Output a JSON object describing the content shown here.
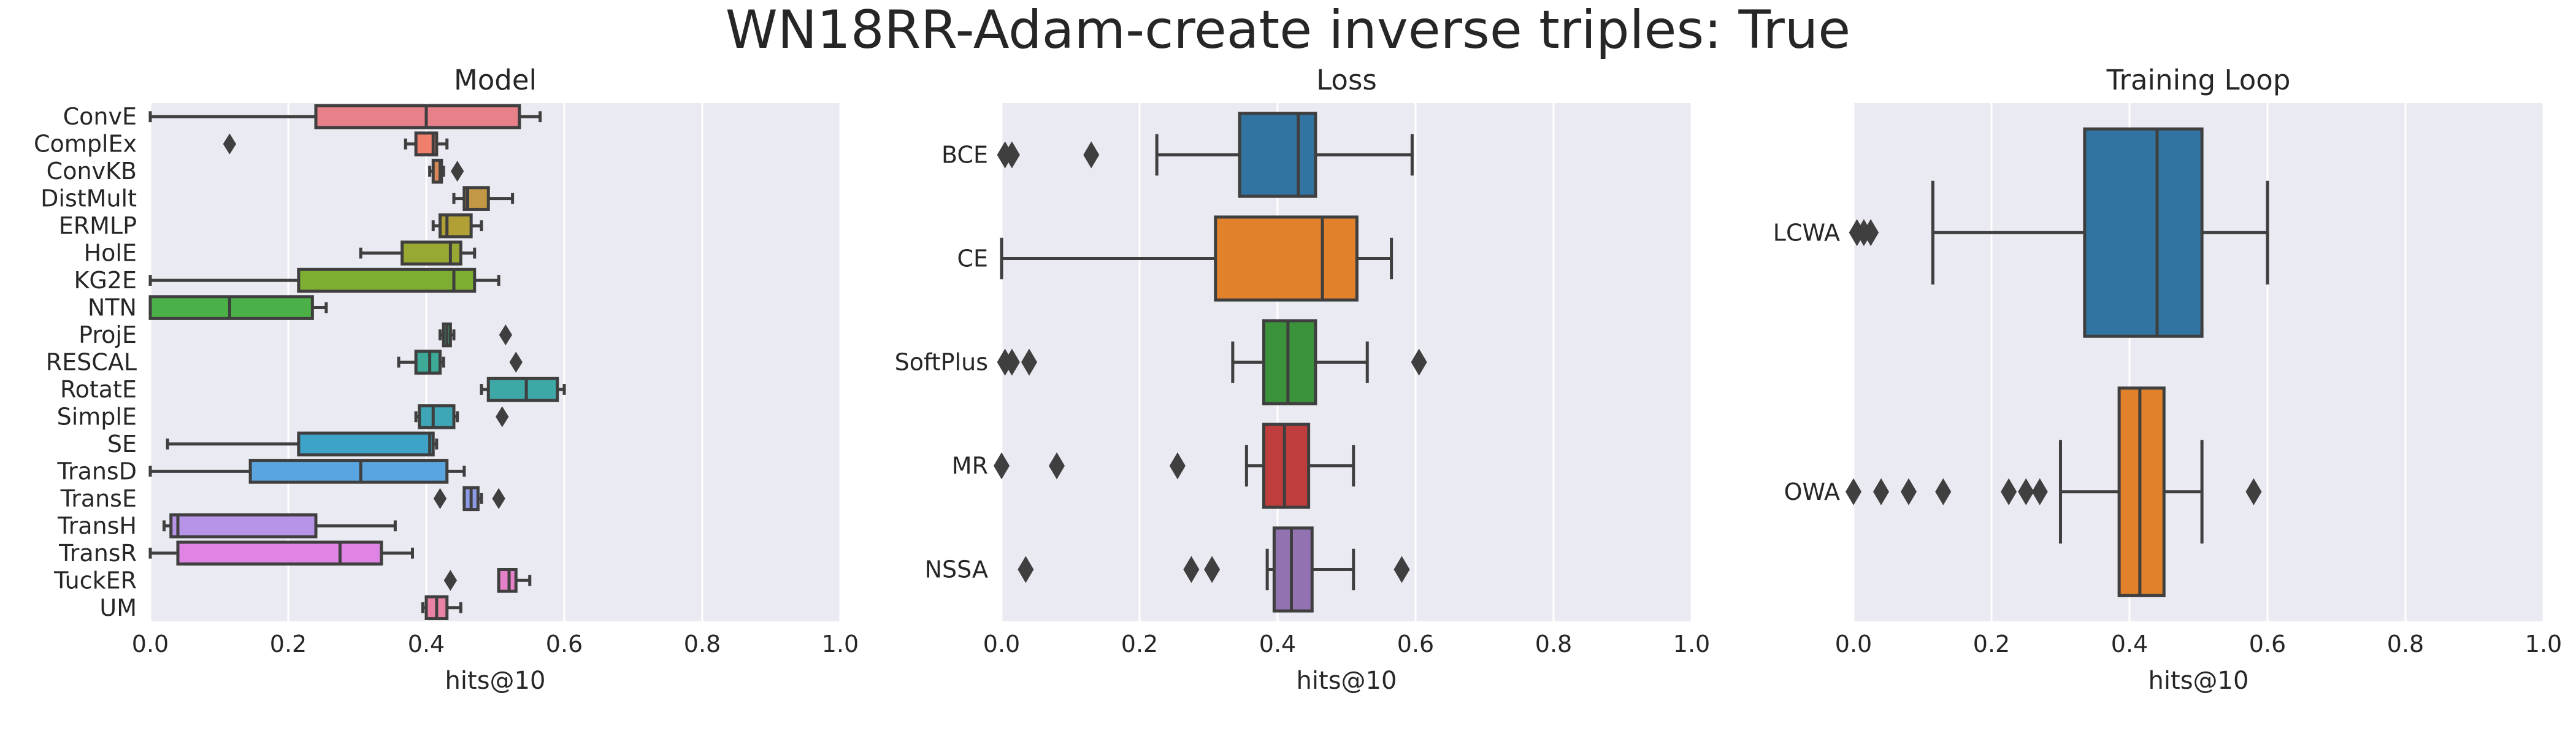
{
  "figure": {
    "suptitle": "WN18RR-Adam-create inverse triples: True",
    "background": "#eaeaf2",
    "grid_color": "#ffffff",
    "line_color": "#3f3f3f"
  },
  "chart_data": [
    {
      "type": "box",
      "title": "Model",
      "xlabel": "hits@10",
      "ylabel": "",
      "xlim": [
        0.0,
        1.0
      ],
      "xticks": [
        "0.0",
        "0.2",
        "0.4",
        "0.6",
        "0.8",
        "1.0"
      ],
      "grid": true,
      "orientation": "horizontal",
      "categories": [
        "ConvE",
        "ComplEx",
        "ConvKB",
        "DistMult",
        "ERMLP",
        "HolE",
        "KG2E",
        "NTN",
        "ProjE",
        "RESCAL",
        "RotatE",
        "SimplE",
        "SE",
        "TransD",
        "TransE",
        "TransH",
        "TransR",
        "TuckER",
        "UM"
      ],
      "boxes": [
        {
          "whislo": 0.0,
          "q1": 0.24,
          "med": 0.4,
          "q3": 0.535,
          "whishi": 0.565,
          "fliers": [],
          "color": "#e8808a"
        },
        {
          "whislo": 0.37,
          "q1": 0.385,
          "med": 0.41,
          "q3": 0.415,
          "whishi": 0.43,
          "fliers": [
            0.115
          ],
          "color": "#f07f6b"
        },
        {
          "whislo": 0.405,
          "q1": 0.41,
          "med": 0.42,
          "q3": 0.422,
          "whishi": 0.425,
          "fliers": [
            0.445
          ],
          "color": "#d8895a"
        },
        {
          "whislo": 0.44,
          "q1": 0.455,
          "med": 0.46,
          "q3": 0.49,
          "whishi": 0.525,
          "fliers": [],
          "color": "#c29846"
        },
        {
          "whislo": 0.41,
          "q1": 0.42,
          "med": 0.43,
          "q3": 0.465,
          "whishi": 0.48,
          "fliers": [],
          "color": "#b0a036"
        },
        {
          "whislo": 0.305,
          "q1": 0.365,
          "med": 0.435,
          "q3": 0.45,
          "whishi": 0.47,
          "fliers": [],
          "color": "#99a832"
        },
        {
          "whislo": 0.0,
          "q1": 0.215,
          "med": 0.44,
          "q3": 0.47,
          "whishi": 0.505,
          "fliers": [],
          "color": "#7dae31"
        },
        {
          "whislo": 0.0,
          "q1": 0.0,
          "med": 0.115,
          "q3": 0.235,
          "whishi": 0.255,
          "fliers": [],
          "color": "#4cb048"
        },
        {
          "whislo": 0.42,
          "q1": 0.425,
          "med": 0.43,
          "q3": 0.435,
          "whishi": 0.44,
          "fliers": [
            0.515
          ],
          "color": "#3bad7c"
        },
        {
          "whislo": 0.36,
          "q1": 0.385,
          "med": 0.405,
          "q3": 0.42,
          "whishi": 0.425,
          "fliers": [
            0.53
          ],
          "color": "#3caa97"
        },
        {
          "whislo": 0.48,
          "q1": 0.49,
          "med": 0.545,
          "q3": 0.59,
          "whishi": 0.6,
          "fliers": [],
          "color": "#3ea8a6"
        },
        {
          "whislo": 0.385,
          "q1": 0.39,
          "med": 0.41,
          "q3": 0.44,
          "whishi": 0.445,
          "fliers": [
            0.51
          ],
          "color": "#3ea6b6"
        },
        {
          "whislo": 0.025,
          "q1": 0.215,
          "med": 0.405,
          "q3": 0.41,
          "whishi": 0.415,
          "fliers": [],
          "color": "#3ea3c8"
        },
        {
          "whislo": 0.0,
          "q1": 0.145,
          "med": 0.305,
          "q3": 0.43,
          "whishi": 0.455,
          "fliers": [],
          "color": "#5aa4e0"
        },
        {
          "whislo": 0.455,
          "q1": 0.455,
          "med": 0.465,
          "q3": 0.475,
          "whishi": 0.48,
          "fliers": [
            0.42,
            0.505
          ],
          "color": "#8d9ae6"
        },
        {
          "whislo": 0.02,
          "q1": 0.03,
          "med": 0.04,
          "q3": 0.24,
          "whishi": 0.355,
          "fliers": [],
          "color": "#b894e8"
        },
        {
          "whislo": 0.0,
          "q1": 0.04,
          "med": 0.275,
          "q3": 0.335,
          "whishi": 0.38,
          "fliers": [],
          "color": "#df84e4"
        },
        {
          "whislo": 0.505,
          "q1": 0.505,
          "med": 0.52,
          "q3": 0.53,
          "whishi": 0.55,
          "fliers": [
            0.435
          ],
          "color": "#e680c8"
        },
        {
          "whislo": 0.395,
          "q1": 0.4,
          "med": 0.415,
          "q3": 0.43,
          "whishi": 0.45,
          "fliers": [],
          "color": "#ea82a6"
        }
      ]
    },
    {
      "type": "box",
      "title": "Loss",
      "xlabel": "hits@10",
      "ylabel": "",
      "xlim": [
        0.0,
        1.0
      ],
      "xticks": [
        "0.0",
        "0.2",
        "0.4",
        "0.6",
        "0.8",
        "1.0"
      ],
      "grid": true,
      "orientation": "horizontal",
      "categories": [
        "BCE",
        "CE",
        "SoftPlus",
        "MR",
        "NSSA"
      ],
      "boxes": [
        {
          "whislo": 0.225,
          "q1": 0.345,
          "med": 0.43,
          "q3": 0.455,
          "whishi": 0.595,
          "fliers": [
            0.005,
            0.015,
            0.13
          ],
          "color": "#3274a1"
        },
        {
          "whislo": 0.0,
          "q1": 0.31,
          "med": 0.465,
          "q3": 0.515,
          "whishi": 0.565,
          "fliers": [],
          "color": "#e1812c"
        },
        {
          "whislo": 0.335,
          "q1": 0.38,
          "med": 0.415,
          "q3": 0.455,
          "whishi": 0.53,
          "fliers": [
            0.005,
            0.015,
            0.04,
            0.605
          ],
          "color": "#3a923a"
        },
        {
          "whislo": 0.355,
          "q1": 0.38,
          "med": 0.41,
          "q3": 0.445,
          "whishi": 0.51,
          "fliers": [
            0.0,
            0.08,
            0.255
          ],
          "color": "#c03d3e"
        },
        {
          "whislo": 0.385,
          "q1": 0.395,
          "med": 0.42,
          "q3": 0.45,
          "whishi": 0.51,
          "fliers": [
            0.035,
            0.275,
            0.305,
            0.58
          ],
          "color": "#9372b2"
        }
      ]
    },
    {
      "type": "box",
      "title": "Training Loop",
      "xlabel": "hits@10",
      "ylabel": "",
      "xlim": [
        0.0,
        1.0
      ],
      "xticks": [
        "0.0",
        "0.2",
        "0.4",
        "0.6",
        "0.8",
        "1.0"
      ],
      "grid": true,
      "orientation": "horizontal",
      "categories": [
        "LCWA",
        "OWA"
      ],
      "boxes": [
        {
          "whislo": 0.115,
          "q1": 0.335,
          "med": 0.44,
          "q3": 0.505,
          "whishi": 0.6,
          "fliers": [
            0.005,
            0.015,
            0.025
          ],
          "color": "#3274a1"
        },
        {
          "whislo": 0.3,
          "q1": 0.385,
          "med": 0.415,
          "q3": 0.45,
          "whishi": 0.505,
          "fliers": [
            0.0,
            0.04,
            0.08,
            0.13,
            0.225,
            0.25,
            0.27,
            0.58
          ],
          "color": "#e1812c"
        }
      ]
    }
  ]
}
